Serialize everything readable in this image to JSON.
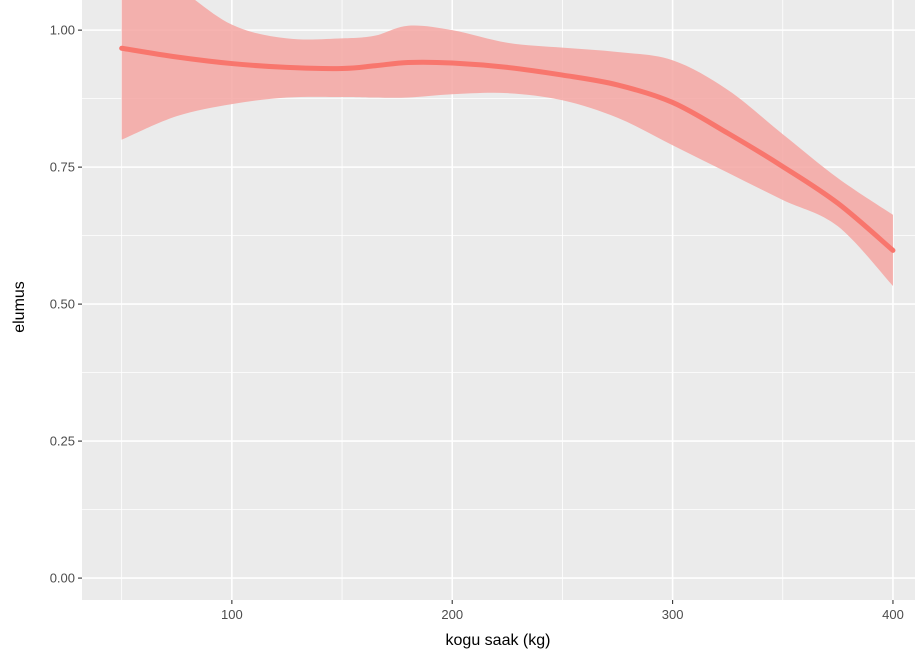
{
  "chart_data": {
    "type": "line",
    "title": "",
    "xlabel": "kogu saak (kg)",
    "ylabel": "elumus",
    "xlim": [
      32,
      410
    ],
    "ylim": [
      -0.04,
      1.055
    ],
    "x_ticks": [
      100,
      200,
      300,
      400
    ],
    "y_ticks": [
      0.0,
      0.25,
      0.5,
      0.75,
      1.0
    ],
    "x_tick_labels": [
      "100",
      "200",
      "300",
      "400"
    ],
    "y_tick_labels": [
      "0.00",
      "0.25",
      "0.50",
      "0.75",
      "1.00"
    ],
    "grid": true,
    "legend": "none",
    "colors": {
      "panel_background": "#ebebeb",
      "grid_major": "#ffffff",
      "line": "#f8766d",
      "ribbon": "#f4a6a2"
    },
    "series": [
      {
        "type": "smooth_with_confidence_band",
        "x": [
          50,
          75,
          100,
          125,
          150,
          165,
          180,
          200,
          225,
          250,
          275,
          300,
          325,
          350,
          375,
          400
        ],
        "y": [
          0.967,
          0.951,
          0.939,
          0.932,
          0.93,
          0.935,
          0.941,
          0.94,
          0.932,
          0.918,
          0.9,
          0.868,
          0.812,
          0.751,
          0.684,
          0.598
        ],
        "lower": [
          0.8,
          0.843,
          0.865,
          0.877,
          0.878,
          0.877,
          0.877,
          0.883,
          0.885,
          0.872,
          0.84,
          0.79,
          0.74,
          0.69,
          0.642,
          0.533
        ],
        "upper": [
          1.15,
          1.08,
          1.01,
          0.985,
          0.985,
          0.99,
          1.008,
          1.0,
          0.977,
          0.968,
          0.96,
          0.945,
          0.891,
          0.81,
          0.73,
          0.663
        ]
      }
    ]
  }
}
